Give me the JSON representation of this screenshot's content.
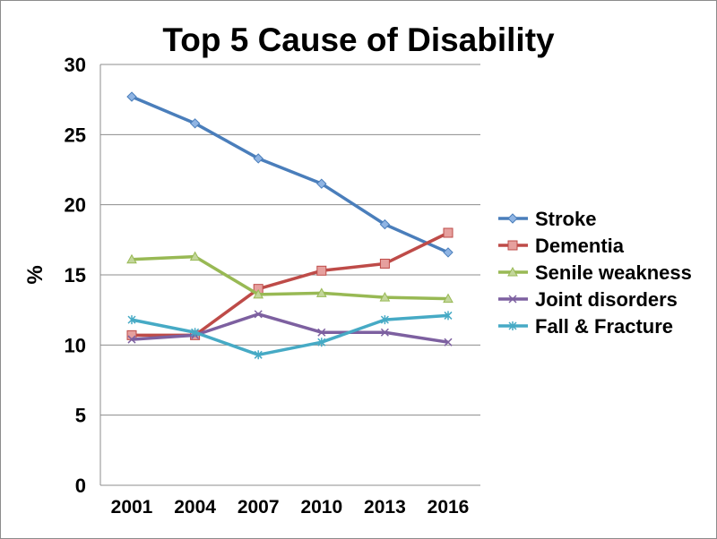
{
  "chart_data": {
    "type": "line",
    "title": "Top 5 Cause of Disability",
    "xlabel": "",
    "ylabel": "%",
    "categories": [
      "2001",
      "2004",
      "2007",
      "2010",
      "2013",
      "2016"
    ],
    "ylim": [
      0,
      30
    ],
    "yticks": [
      "0",
      "5",
      "10",
      "15",
      "20",
      "25",
      "30"
    ],
    "grid": true,
    "legend_position": "right",
    "series": [
      {
        "name": "Stroke",
        "color": "#4a7ebb",
        "marker": "diamond",
        "values": [
          27.7,
          25.8,
          23.3,
          21.5,
          18.6,
          16.6
        ]
      },
      {
        "name": "Dementia",
        "color": "#be4b48",
        "marker": "square",
        "values": [
          10.7,
          10.7,
          14.0,
          15.3,
          15.8,
          18.0
        ]
      },
      {
        "name": "Senile weakness",
        "color": "#98b954",
        "marker": "triangle",
        "values": [
          16.1,
          16.3,
          13.6,
          13.7,
          13.4,
          13.3
        ]
      },
      {
        "name": "Joint disorders",
        "color": "#7d60a0",
        "marker": "x",
        "values": [
          10.4,
          10.7,
          12.2,
          10.9,
          10.9,
          10.2
        ]
      },
      {
        "name": "Fall & Fracture",
        "color": "#46aac5",
        "marker": "star",
        "values": [
          11.8,
          10.9,
          9.3,
          10.2,
          11.8,
          12.1
        ]
      }
    ]
  }
}
